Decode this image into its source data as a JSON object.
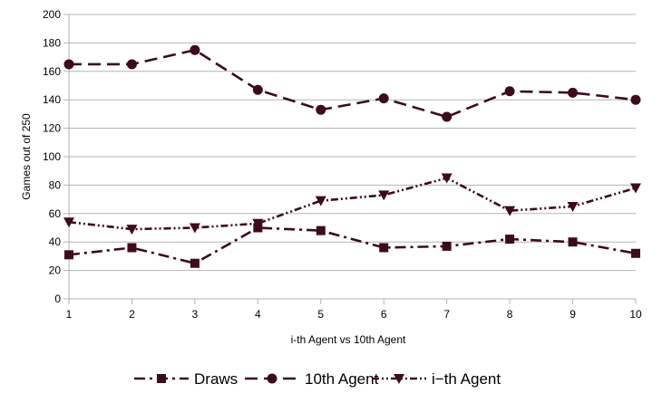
{
  "chart_data": {
    "type": "line",
    "title": "",
    "xlabel": "i-th Agent  vs 10th Agent",
    "ylabel": "Games out of 250",
    "x": [
      1,
      2,
      3,
      4,
      5,
      6,
      7,
      8,
      9,
      10
    ],
    "ylim": [
      0,
      200
    ],
    "yticks": [
      0,
      20,
      40,
      60,
      80,
      100,
      120,
      140,
      160,
      180,
      200
    ],
    "grid": "horizontal",
    "legend_position": "bottom",
    "series": [
      {
        "name": "Draws",
        "marker": "square",
        "dash": "dash-dot",
        "values": [
          31,
          36,
          25,
          50,
          48,
          36,
          37,
          42,
          40,
          32
        ]
      },
      {
        "name": "10th Agent",
        "marker": "circle",
        "dash": "long-dash",
        "values": [
          165,
          165,
          175,
          147,
          133,
          141,
          128,
          146,
          145,
          140
        ]
      },
      {
        "name": "i−th Agent",
        "marker": "triangle-down",
        "dash": "dash-dot-dot",
        "values": [
          54,
          49,
          50,
          53,
          69,
          73,
          85,
          62,
          65,
          78
        ]
      }
    ],
    "colors": {
      "series": "#3d0a1e",
      "grid": "#b3b3b3",
      "axis": "#b3b3b3"
    }
  }
}
